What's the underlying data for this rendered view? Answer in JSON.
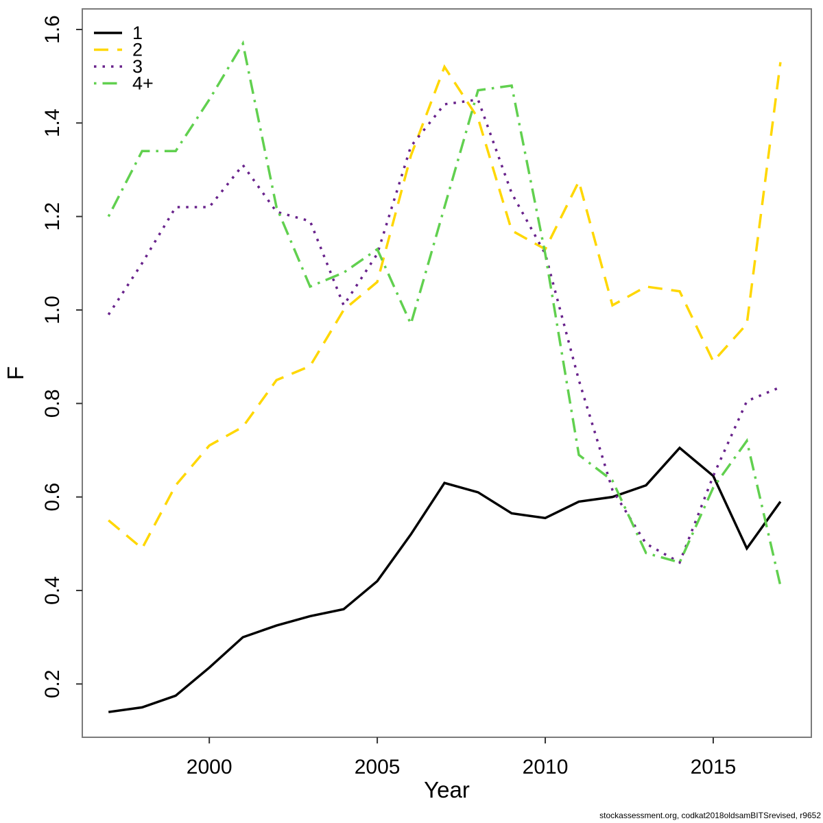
{
  "chart_data": {
    "type": "line",
    "title": "",
    "xlabel": "Year",
    "ylabel": "F",
    "x": [
      1997,
      1998,
      1999,
      2000,
      2001,
      2002,
      2003,
      2004,
      2005,
      2006,
      2007,
      2008,
      2009,
      2010,
      2011,
      2012,
      2013,
      2014,
      2015,
      2016,
      2017
    ],
    "x_ticks": [
      2000,
      2005,
      2010,
      2015
    ],
    "y_ticks": [
      0.2,
      0.4,
      0.6,
      0.8,
      1.0,
      1.2,
      1.4,
      1.6
    ],
    "xlim": [
      1996.22,
      2017.92
    ],
    "ylim": [
      0.086,
      1.644
    ],
    "grid": false,
    "legend_position": "top-left",
    "box_color": "#7a7a7a",
    "tick_color": "#333333",
    "series": [
      {
        "name": "1",
        "color": "#000000",
        "style": "solid",
        "values": [
          0.14,
          0.15,
          0.175,
          0.235,
          0.3,
          0.325,
          0.345,
          0.36,
          0.42,
          0.52,
          0.63,
          0.61,
          0.565,
          0.555,
          0.59,
          0.6,
          0.625,
          0.705,
          0.645,
          0.49,
          0.59
        ]
      },
      {
        "name": "2",
        "color": "#FFD700",
        "style": "longdash",
        "values": [
          0.55,
          0.49,
          0.625,
          0.71,
          0.75,
          0.85,
          0.88,
          1.0,
          1.06,
          1.33,
          1.52,
          1.41,
          1.17,
          1.13,
          1.275,
          1.01,
          1.05,
          1.04,
          0.89,
          0.97,
          1.53
        ]
      },
      {
        "name": "3",
        "color": "#68228B",
        "style": "dotted",
        "values": [
          0.99,
          1.1,
          1.22,
          1.22,
          1.31,
          1.21,
          1.19,
          1.01,
          1.12,
          1.35,
          1.44,
          1.45,
          1.25,
          1.12,
          0.85,
          0.615,
          0.5,
          0.46,
          0.645,
          0.805,
          0.835
        ]
      },
      {
        "name": "4+",
        "color": "#61D04F",
        "style": "dotdash",
        "values": [
          1.2,
          1.34,
          1.34,
          1.45,
          1.57,
          1.22,
          1.05,
          1.08,
          1.13,
          0.97,
          1.22,
          1.47,
          1.48,
          1.12,
          0.69,
          0.635,
          0.48,
          0.46,
          0.62,
          0.72,
          0.41
        ]
      }
    ]
  },
  "footer": {
    "credit": "stockassessment.org, codkat2018oldsamBITSrevised, r9652"
  }
}
